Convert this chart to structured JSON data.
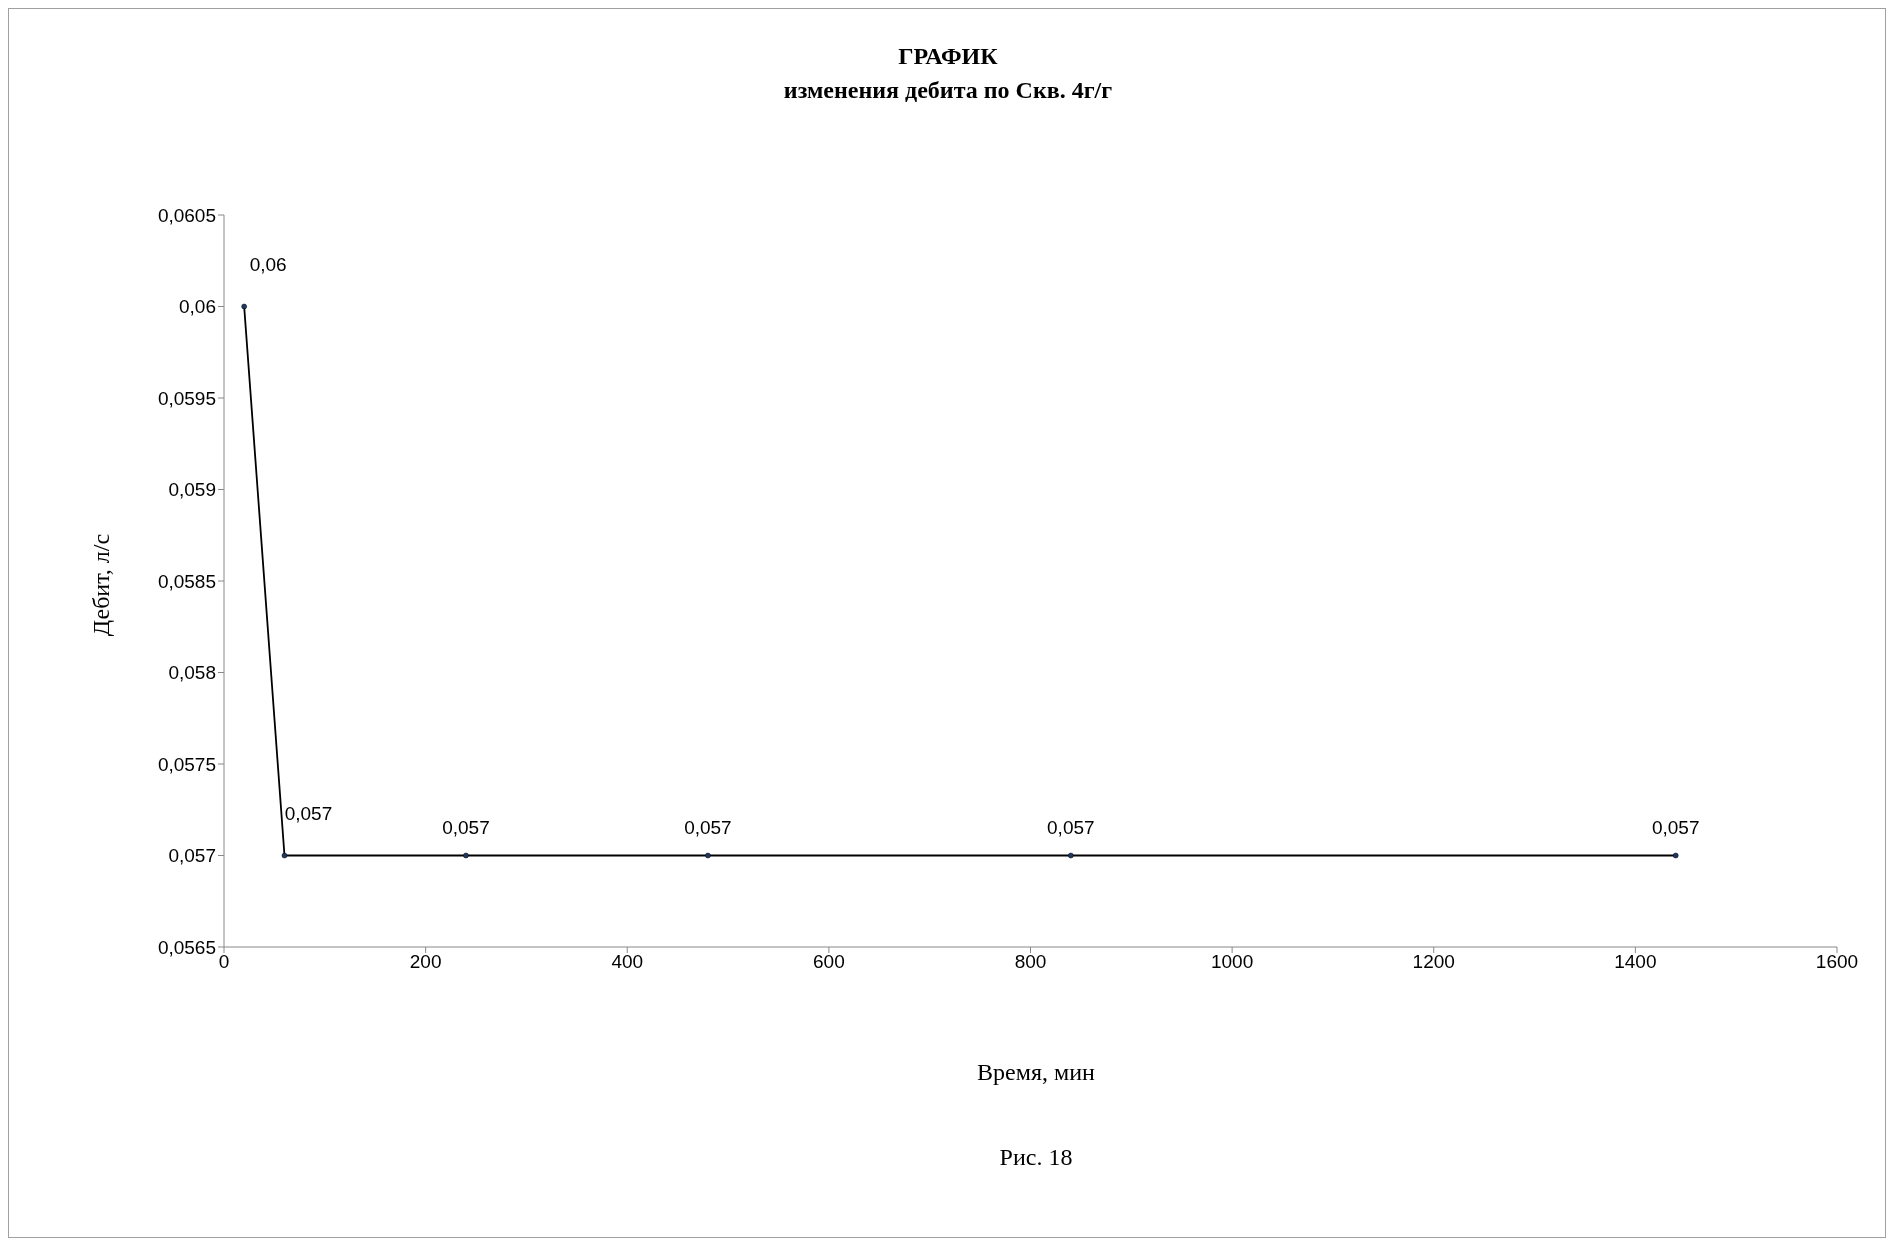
{
  "chart_data": {
    "type": "line",
    "title": "ГРАФИК",
    "subtitle": "изменения дебита по Скв. 4г/г",
    "xlabel": "Время, мин",
    "ylabel": "Дебит, л/с",
    "annotations": [
      "Рис. 18"
    ],
    "x": [
      20,
      60,
      240,
      480,
      840,
      1440
    ],
    "series": [
      {
        "color": "#000000",
        "values": [
          0.06,
          0.057,
          0.057,
          0.057,
          0.057,
          0.057
        ],
        "value_labels": [
          "0,06",
          "0,057",
          "0,057",
          "0,057",
          "0,057",
          "0,057"
        ]
      }
    ],
    "xlim": [
      0,
      1600
    ],
    "xticks": [
      0,
      200,
      400,
      600,
      800,
      1000,
      1200,
      1400,
      1600
    ],
    "ylim": [
      0.0565,
      0.0605
    ],
    "yticks": [
      {
        "value": 0.0565,
        "label": "0,0565"
      },
      {
        "value": 0.057,
        "label": "0,057"
      },
      {
        "value": 0.0575,
        "label": "0,0575"
      },
      {
        "value": 0.058,
        "label": "0,058"
      },
      {
        "value": 0.0585,
        "label": "0,0585"
      },
      {
        "value": 0.059,
        "label": "0,059"
      },
      {
        "value": 0.0595,
        "label": "0,0595"
      },
      {
        "value": 0.06,
        "label": "0,06"
      },
      {
        "value": 0.0605,
        "label": "0,0605"
      }
    ],
    "marker": "circle",
    "line_style": "solid",
    "grid": false,
    "legend": false
  }
}
